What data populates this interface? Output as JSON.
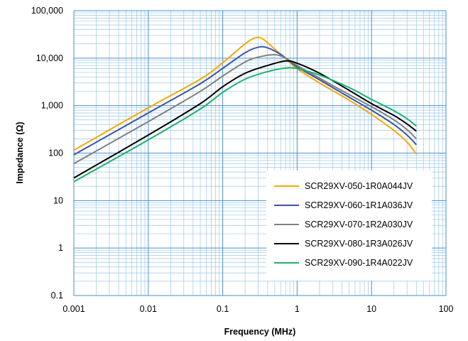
{
  "chart_data": {
    "type": "line",
    "title": "",
    "xlabel": "Frequency (MHz)",
    "ylabel": "Impedance (Ω)",
    "xscale": "log",
    "yscale": "log",
    "xlim": [
      0.001,
      100
    ],
    "ylim": [
      0.1,
      100000
    ],
    "grid": true,
    "legend_position": "lower-right",
    "x_tick_labels": [
      "0.001",
      "0.01",
      "0.1",
      "1",
      "10",
      "100"
    ],
    "y_tick_labels": [
      "0.1",
      "1",
      "10",
      "100",
      "1,000",
      "10,000",
      "100,000"
    ],
    "series": [
      {
        "name": "SCR29XV-050-1R0A044JV",
        "color": "#f5a800",
        "points": [
          [
            0.001,
            115
          ],
          [
            0.01,
            900
          ],
          [
            0.05,
            3600
          ],
          [
            0.1,
            8000
          ],
          [
            0.2,
            20000
          ],
          [
            0.28,
            27000
          ],
          [
            0.35,
            25000
          ],
          [
            0.5,
            15500
          ],
          [
            0.7,
            9800
          ],
          [
            1,
            6000
          ],
          [
            2,
            3000
          ],
          [
            5,
            1300
          ],
          [
            10,
            650
          ],
          [
            20,
            300
          ],
          [
            30,
            170
          ],
          [
            40,
            95
          ]
        ]
      },
      {
        "name": "SCR29XV-060-1R1A036JV",
        "color": "#3a55a5",
        "points": [
          [
            0.001,
            92
          ],
          [
            0.01,
            700
          ],
          [
            0.05,
            2900
          ],
          [
            0.1,
            6100
          ],
          [
            0.2,
            13000
          ],
          [
            0.3,
            17000
          ],
          [
            0.4,
            16500
          ],
          [
            0.6,
            12000
          ],
          [
            0.8,
            8500
          ],
          [
            1,
            6500
          ],
          [
            2,
            3500
          ],
          [
            5,
            1500
          ],
          [
            10,
            800
          ],
          [
            20,
            400
          ],
          [
            30,
            240
          ],
          [
            40,
            150
          ]
        ]
      },
      {
        "name": "SCR29XV-070-1R2A030JV",
        "color": "#808080",
        "points": [
          [
            0.001,
            60
          ],
          [
            0.01,
            460
          ],
          [
            0.05,
            2000
          ],
          [
            0.1,
            4200
          ],
          [
            0.2,
            8300
          ],
          [
            0.3,
            10500
          ],
          [
            0.5,
            11800
          ],
          [
            0.7,
            10000
          ],
          [
            1,
            7000
          ],
          [
            2,
            3800
          ],
          [
            5,
            1700
          ],
          [
            10,
            950
          ],
          [
            20,
            500
          ],
          [
            30,
            310
          ],
          [
            40,
            200
          ]
        ]
      },
      {
        "name": "SCR29XV-080-1R3A026JV",
        "color": "#000000",
        "points": [
          [
            0.001,
            30
          ],
          [
            0.01,
            240
          ],
          [
            0.05,
            1100
          ],
          [
            0.1,
            2500
          ],
          [
            0.2,
            4800
          ],
          [
            0.4,
            7000
          ],
          [
            0.7,
            8700
          ],
          [
            1,
            7800
          ],
          [
            2,
            4800
          ],
          [
            5,
            2100
          ],
          [
            10,
            1100
          ],
          [
            20,
            620
          ],
          [
            30,
            410
          ],
          [
            40,
            290
          ]
        ]
      },
      {
        "name": "SCR29XV-090-1R4A022JV",
        "color": "#1db36b",
        "points": [
          [
            0.001,
            25
          ],
          [
            0.01,
            190
          ],
          [
            0.05,
            850
          ],
          [
            0.1,
            1900
          ],
          [
            0.2,
            3600
          ],
          [
            0.4,
            5200
          ],
          [
            0.7,
            6200
          ],
          [
            1,
            6000
          ],
          [
            2,
            4400
          ],
          [
            5,
            2400
          ],
          [
            10,
            1350
          ],
          [
            20,
            780
          ],
          [
            30,
            530
          ],
          [
            40,
            370
          ]
        ]
      }
    ]
  }
}
